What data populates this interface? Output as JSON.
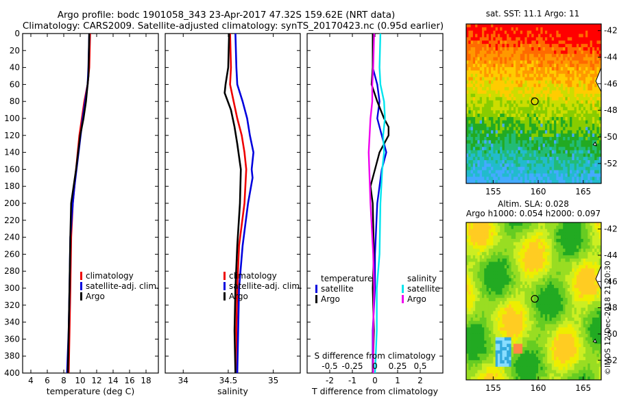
{
  "title_line1": "Argo profile: bodc 1901058_343 23-Apr-2017 47.32S 159.62E (NRT data)",
  "title_line2": "Climatology: CARS2009. Satellite-adjusted climatology: synTS_20170423.nc (0.95d earlier)",
  "watermark": "©IMOS 12-Dec-2018 21:20:30",
  "colors": {
    "climatology": "#ee0000",
    "satellite": "#0000dd",
    "argo": "#000000",
    "s_satellite": "#00e5ee",
    "s_argo": "#ee00ee"
  },
  "chart_data": [
    {
      "type": "line",
      "name": "temperature",
      "xlabel": "temperature (deg C)",
      "xlim": [
        3,
        19.5
      ],
      "xticks": [
        "4",
        "6",
        "8",
        "10",
        "12",
        "14",
        "16",
        "18"
      ],
      "ylim": [
        0,
        400
      ],
      "yticks": [
        "0",
        "20",
        "40",
        "60",
        "80",
        "100",
        "120",
        "140",
        "160",
        "180",
        "200",
        "220",
        "240",
        "260",
        "280",
        "300",
        "320",
        "340",
        "360",
        "380",
        "400"
      ],
      "legend": [
        "climatology",
        "satellite-adj. clim.",
        "Argo"
      ],
      "series": [
        {
          "name": "climatology",
          "depth": [
            0,
            40,
            60,
            80,
            100,
            120,
            140,
            160,
            180,
            200,
            240,
            300,
            350,
            400
          ],
          "values": [
            11.2,
            11.1,
            10.9,
            10.5,
            10.2,
            9.9,
            9.7,
            9.5,
            9.3,
            9.1,
            8.9,
            8.8,
            8.7,
            8.6
          ]
        },
        {
          "name": "satellite-adj. clim.",
          "depth": [
            0,
            40,
            60,
            80,
            100,
            140,
            180,
            200,
            240,
            300,
            350,
            400
          ],
          "values": [
            11.1,
            11.0,
            10.9,
            10.6,
            10.3,
            9.8,
            9.3,
            9.1,
            8.8,
            8.7,
            8.6,
            8.4
          ]
        },
        {
          "name": "Argo",
          "depth": [
            0,
            50,
            80,
            100,
            120,
            160,
            200,
            240,
            300,
            350,
            400
          ],
          "values": [
            11.1,
            11.0,
            10.7,
            10.4,
            10.0,
            9.5,
            8.9,
            8.8,
            8.7,
            8.6,
            8.5
          ]
        }
      ]
    },
    {
      "type": "line",
      "name": "salinity",
      "xlabel": "salinity",
      "xlim": [
        33.8,
        35.3
      ],
      "xticks": [
        "34",
        "34.5",
        "35"
      ],
      "ylim": [
        0,
        400
      ],
      "legend": [
        "climatology",
        "satellite-adj. clim.",
        "Argo"
      ],
      "series": [
        {
          "name": "climatology",
          "depth": [
            0,
            40,
            60,
            80,
            100,
            120,
            140,
            160,
            200,
            250,
            300,
            350,
            400
          ],
          "values": [
            34.52,
            34.53,
            34.52,
            34.56,
            34.6,
            34.65,
            34.68,
            34.7,
            34.68,
            34.62,
            34.6,
            34.59,
            34.6
          ]
        },
        {
          "name": "satellite-adj. clim.",
          "depth": [
            0,
            40,
            60,
            80,
            100,
            120,
            140,
            160,
            170,
            200,
            250,
            300,
            350,
            400
          ],
          "values": [
            34.58,
            34.59,
            34.6,
            34.66,
            34.71,
            34.74,
            34.78,
            34.76,
            34.77,
            34.72,
            34.66,
            34.62,
            34.61,
            34.6
          ]
        },
        {
          "name": "Argo",
          "depth": [
            0,
            40,
            60,
            70,
            90,
            110,
            130,
            160,
            200,
            250,
            300,
            350,
            400
          ],
          "values": [
            34.51,
            34.5,
            34.47,
            34.46,
            34.53,
            34.57,
            34.6,
            34.64,
            34.63,
            34.6,
            34.58,
            34.57,
            34.58
          ]
        }
      ]
    },
    {
      "type": "line",
      "name": "difference_from_climatology",
      "xlabel": "T difference from climatology",
      "xlim": [
        -3,
        3
      ],
      "xticks": [
        "-2",
        "-1",
        "0",
        "1",
        "2"
      ],
      "top_axis_label": "S difference from climatology",
      "top_xticks": [
        "-0.5",
        "-0.25",
        "0",
        "0.25",
        "0.5"
      ],
      "ylim": [
        0,
        400
      ],
      "legend": {
        "temperature_header": "temperature",
        "salinity_header": "salinity",
        "temperature_items": [
          "satellite",
          "Argo"
        ],
        "salinity_items": [
          "satellite",
          "Argo"
        ]
      },
      "series": [
        {
          "name": "T satellite",
          "depth": [
            0,
            40,
            60,
            80,
            100,
            120,
            140,
            160,
            200,
            260,
            300,
            350,
            400
          ],
          "values": [
            -0.1,
            -0.1,
            0.1,
            0.2,
            0.1,
            0.3,
            0.5,
            0.3,
            0.1,
            0.0,
            0.0,
            -0.1,
            -0.1
          ]
        },
        {
          "name": "T Argo",
          "depth": [
            0,
            40,
            60,
            80,
            100,
            110,
            120,
            140,
            160,
            180,
            200,
            260,
            300,
            350,
            400
          ],
          "values": [
            -0.1,
            -0.1,
            -0.15,
            0.1,
            0.4,
            0.6,
            0.6,
            0.2,
            0.0,
            -0.2,
            -0.1,
            -0.05,
            -0.1,
            -0.05,
            -0.1
          ]
        },
        {
          "name": "S satellite",
          "depth": [
            0,
            40,
            60,
            80,
            100,
            120,
            140,
            160,
            200,
            260,
            300,
            350,
            400
          ],
          "values": [
            0.06,
            0.05,
            0.06,
            0.1,
            0.11,
            0.09,
            0.1,
            0.08,
            0.06,
            0.05,
            0.02,
            0.02,
            0.0
          ]
        },
        {
          "name": "S Argo",
          "depth": [
            0,
            40,
            60,
            80,
            100,
            140,
            200,
            260,
            300,
            350,
            400
          ],
          "values": [
            -0.01,
            -0.02,
            -0.03,
            -0.03,
            -0.05,
            -0.07,
            -0.05,
            -0.02,
            -0.01,
            -0.02,
            -0.02
          ]
        }
      ]
    },
    {
      "type": "heatmap",
      "name": "sst_map",
      "title": "sat. SST: 11.1  Argo: 11",
      "xlim": [
        152,
        167
      ],
      "xticks": [
        "155",
        "160",
        "165"
      ],
      "ylim": [
        -53.5,
        -41.5
      ],
      "yticks": [
        "-42",
        "-44",
        "-46",
        "-48",
        "-50",
        "-52"
      ],
      "argo_position": [
        159.62,
        -47.32
      ]
    },
    {
      "type": "heatmap",
      "name": "sla_map",
      "title_line1": "Altim. SLA: 0.028",
      "title_line2": "Argo h1000: 0.054 h2000: 0.097",
      "xlim": [
        152,
        167
      ],
      "xticks": [
        "155",
        "160",
        "165"
      ],
      "ylim": [
        -53.5,
        -41.5
      ],
      "yticks": [
        "-42",
        "-44",
        "-46",
        "-48",
        "-50",
        "-52"
      ],
      "argo_position": [
        159.62,
        -47.32
      ]
    }
  ]
}
